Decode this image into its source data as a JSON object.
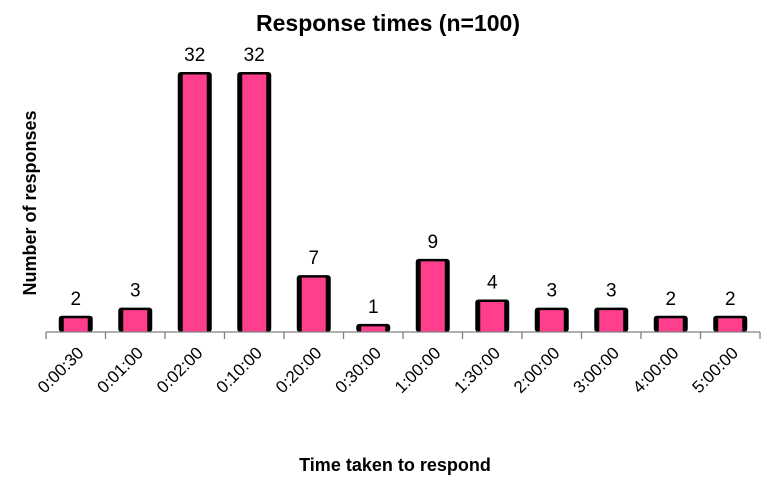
{
  "chart_data": {
    "type": "bar",
    "title": "Response times (n=100)",
    "xlabel": "Time taken to respond",
    "ylabel": "Number of responses",
    "categories": [
      "0:00:30",
      "0:01:00",
      "0:02:00",
      "0:10:00",
      "0:20:00",
      "0:30:00",
      "1:00:00",
      "1:30:00",
      "2:00:00",
      "3:00:00",
      "4:00:00",
      "5:00:00"
    ],
    "values": [
      2,
      3,
      32,
      32,
      7,
      1,
      9,
      4,
      3,
      3,
      2,
      2
    ],
    "ylim": [
      0,
      32
    ],
    "grid": false,
    "legend": "none",
    "data_labels": true,
    "colors": {
      "bar_face": "#ff3f8e",
      "bar_side": "#000000",
      "axis": "#808080",
      "text": "#000000"
    }
  }
}
